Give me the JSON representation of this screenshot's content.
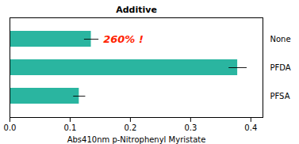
{
  "chart_data": {
    "type": "bar",
    "orientation": "horizontal",
    "title": "Additive",
    "categories": [
      "None",
      "PFDA",
      "PFSA"
    ],
    "values": [
      0.135,
      0.378,
      0.115
    ],
    "errors": [
      0.012,
      0.015,
      0.01
    ],
    "color": "#2ab5a0",
    "xlabel": "Abs410nm p-Nitrophenyl Myristate",
    "xlim": [
      0.0,
      0.42
    ],
    "xticks": [
      {
        "value": 0,
        "label": "0.0"
      },
      0.1,
      0.2,
      0.3,
      0.4
    ],
    "grid": false,
    "annotations": [
      {
        "text": "260% !",
        "x": 0.155,
        "y": "None",
        "color": "#ff2200"
      }
    ]
  }
}
